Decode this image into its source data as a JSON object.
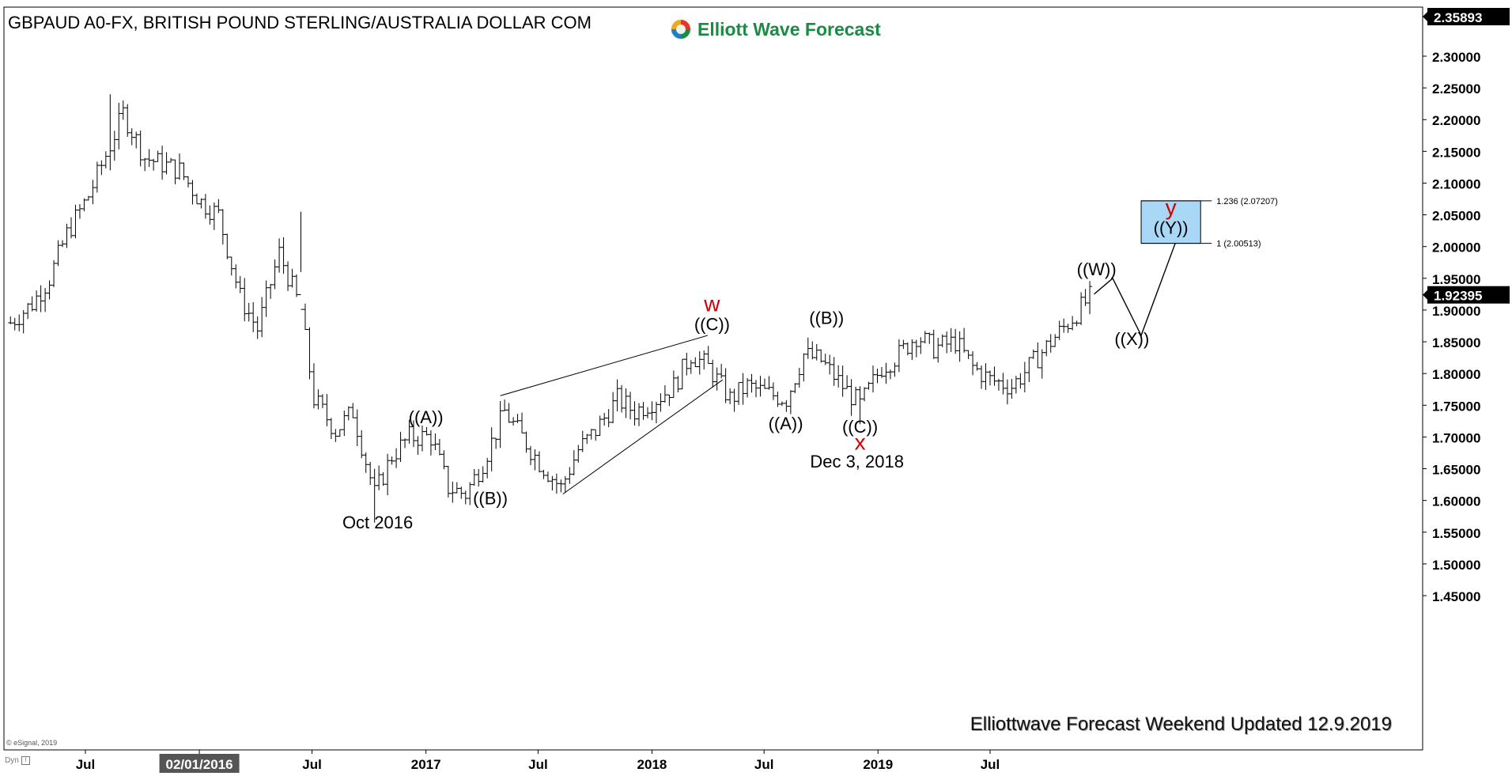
{
  "header": {
    "title": "GBPAUD A0-FX, BRITISH POUND STERLING/AUSTRALIA DOLLAR COM",
    "logo_text": "Elliott Wave Forecast",
    "logo_icon": "ewf-swirl-icon"
  },
  "footer": {
    "note": "Elliottwave Forecast Weekend Updated 12.9.2019",
    "copyright": "© eSignal, 2019",
    "dyn_label": "Dyn"
  },
  "colors": {
    "background": "#ffffff",
    "bars": "#000000",
    "wave_red": "#d40000",
    "target_fill": "#a9d8f7",
    "target_border": "#000000",
    "logo_green": "#1b8a42"
  },
  "chart_data": {
    "type": "ohlc",
    "ylim": [
      1.43,
      2.38
    ],
    "y_ticks": [
      "2.30000",
      "2.25000",
      "2.20000",
      "2.15000",
      "2.10000",
      "2.05000",
      "2.00000",
      "1.95000",
      "1.90000",
      "1.85000",
      "1.80000",
      "1.75000",
      "1.70000",
      "1.65000",
      "1.60000",
      "1.55000",
      "1.50000",
      "1.45000"
    ],
    "y_tick_values": [
      2.3,
      2.25,
      2.2,
      2.15,
      2.1,
      2.05,
      2.0,
      1.95,
      1.9,
      1.85,
      1.8,
      1.75,
      1.7,
      1.65,
      1.6,
      1.55,
      1.5,
      1.45
    ],
    "last_price": {
      "label": "1.92395",
      "value": 1.92395
    },
    "top_price": {
      "label": "2.35893",
      "value": 2.35893
    },
    "x_labels": [
      "Jul",
      "02/01/2016",
      "Jul",
      "2017",
      "Jul",
      "2018",
      "Jul",
      "2019",
      "Jul"
    ],
    "x_label_dates": [
      "2015-07-01",
      "2016-01-01",
      "2016-07-01",
      "2017-01-01",
      "2017-07-01",
      "2018-01-01",
      "2018-07-01",
      "2019-01-01",
      "2019-07-01"
    ],
    "highlighted_x_label": "02/01/2016",
    "price_path": [
      [
        "2015-03-02",
        1.88
      ],
      [
        "2015-04-06",
        1.91
      ],
      [
        "2015-05-04",
        1.95
      ],
      [
        "2015-06-01",
        2.02
      ],
      [
        "2015-07-06",
        2.08
      ],
      [
        "2015-08-10",
        2.16
      ],
      [
        "2015-08-31",
        2.21
      ],
      [
        "2015-10-05",
        2.14
      ],
      [
        "2015-11-02",
        2.13
      ],
      [
        "2015-11-30",
        2.12
      ],
      [
        "2016-01-04",
        2.07
      ],
      [
        "2016-02-01",
        2.05
      ],
      [
        "2016-03-07",
        1.92
      ],
      [
        "2016-04-04",
        1.87
      ],
      [
        "2016-05-09",
        1.99
      ],
      [
        "2016-06-13",
        1.9
      ],
      [
        "2016-07-04",
        1.76
      ],
      [
        "2016-08-08",
        1.71
      ],
      [
        "2016-09-05",
        1.74
      ],
      [
        "2016-10-10",
        1.61
      ],
      [
        "2016-11-07",
        1.67
      ],
      [
        "2016-12-05",
        1.7
      ],
      [
        "2017-01-09",
        1.7
      ],
      [
        "2017-02-06",
        1.62
      ],
      [
        "2017-03-06",
        1.61
      ],
      [
        "2017-04-03",
        1.66
      ],
      [
        "2017-05-08",
        1.74
      ],
      [
        "2017-06-05",
        1.7
      ],
      [
        "2017-07-03",
        1.66
      ],
      [
        "2017-08-07",
        1.62
      ],
      [
        "2017-09-04",
        1.68
      ],
      [
        "2017-10-02",
        1.71
      ],
      [
        "2017-11-06",
        1.76
      ],
      [
        "2017-12-04",
        1.74
      ],
      [
        "2018-01-08",
        1.76
      ],
      [
        "2018-02-05",
        1.78
      ],
      [
        "2018-03-05",
        1.83
      ],
      [
        "2018-04-02",
        1.81
      ],
      [
        "2018-05-07",
        1.76
      ],
      [
        "2018-06-04",
        1.78
      ],
      [
        "2018-07-02",
        1.77
      ],
      [
        "2018-08-06",
        1.76
      ],
      [
        "2018-09-03",
        1.83
      ],
      [
        "2018-10-01",
        1.82
      ],
      [
        "2018-11-05",
        1.78
      ],
      [
        "2018-12-03",
        1.75
      ],
      [
        "2019-01-07",
        1.81
      ],
      [
        "2019-02-04",
        1.83
      ],
      [
        "2019-03-04",
        1.86
      ],
      [
        "2019-04-01",
        1.84
      ],
      [
        "2019-05-06",
        1.85
      ],
      [
        "2019-06-03",
        1.81
      ],
      [
        "2019-07-01",
        1.79
      ],
      [
        "2019-08-05",
        1.78
      ],
      [
        "2019-09-02",
        1.81
      ],
      [
        "2019-10-07",
        1.85
      ],
      [
        "2019-11-04",
        1.88
      ],
      [
        "2019-12-09",
        1.92
      ]
    ],
    "extremes": [
      {
        "date": "2015-08-10",
        "high": 2.24,
        "low": 2.12
      },
      {
        "date": "2016-10-10",
        "high": 1.65,
        "low": 1.565
      },
      {
        "date": "2018-12-03",
        "high": 1.78,
        "low": 1.72
      },
      {
        "date": "2016-06-13",
        "high": 2.055,
        "low": 1.96
      }
    ],
    "wave_labels": [
      {
        "text": "((A))",
        "date": "2017-01-01",
        "price": 1.722,
        "color": "#000000"
      },
      {
        "text": "((B))",
        "date": "2017-04-15",
        "price": 1.594,
        "color": "#000000"
      },
      {
        "text": "Oct 2016",
        "date": "2016-10-15",
        "price": 1.556,
        "color": "#000000"
      },
      {
        "text": "w",
        "date": "2018-04-08",
        "price": 1.898,
        "color": "#d40000"
      },
      {
        "text": "((C))",
        "date": "2018-04-08",
        "price": 1.868,
        "color": "#000000"
      },
      {
        "text": "((A))",
        "date": "2018-08-05",
        "price": 1.712,
        "color": "#000000"
      },
      {
        "text": "((B))",
        "date": "2018-10-10",
        "price": 1.878,
        "color": "#000000"
      },
      {
        "text": "((C))",
        "date": "2018-12-03",
        "price": 1.707,
        "color": "#000000"
      },
      {
        "text": "x",
        "date": "2018-12-03",
        "price": 1.68,
        "color": "#d40000"
      },
      {
        "text": "Dec 3, 2018",
        "date": "2018-11-28",
        "price": 1.652,
        "color": "#000000"
      },
      {
        "text": "((W))",
        "date": "2019-12-20",
        "price": 1.955,
        "color": "#000000"
      },
      {
        "text": "((X))",
        "date": "2020-02-15",
        "price": 1.845,
        "color": "#000000"
      },
      {
        "text": "y",
        "date": "2020-04-18",
        "price": 2.05,
        "color": "#d40000"
      },
      {
        "text": "((Y))",
        "date": "2020-04-18",
        "price": 2.02,
        "color": "#000000"
      }
    ],
    "trendlines": [
      {
        "from": [
          "2017-05-01",
          1.765
        ],
        "to": [
          "2018-04-01",
          1.86
        ]
      },
      {
        "from": [
          "2017-08-10",
          1.61
        ],
        "to": [
          "2018-04-25",
          1.79
        ]
      }
    ],
    "projection_path": [
      [
        "2019-12-16",
        1.925
      ],
      [
        "2020-01-15",
        1.95
      ],
      [
        "2020-03-01",
        1.86
      ],
      [
        "2020-04-25",
        2.005
      ]
    ],
    "target_zone": {
      "date_from": "2020-03-01",
      "date_to": "2020-06-05",
      "price_low": 2.00513,
      "price_high": 2.07207,
      "labels": [
        "1.236 (2.07207)",
        "1 (2.00513)"
      ]
    },
    "grid": false
  }
}
